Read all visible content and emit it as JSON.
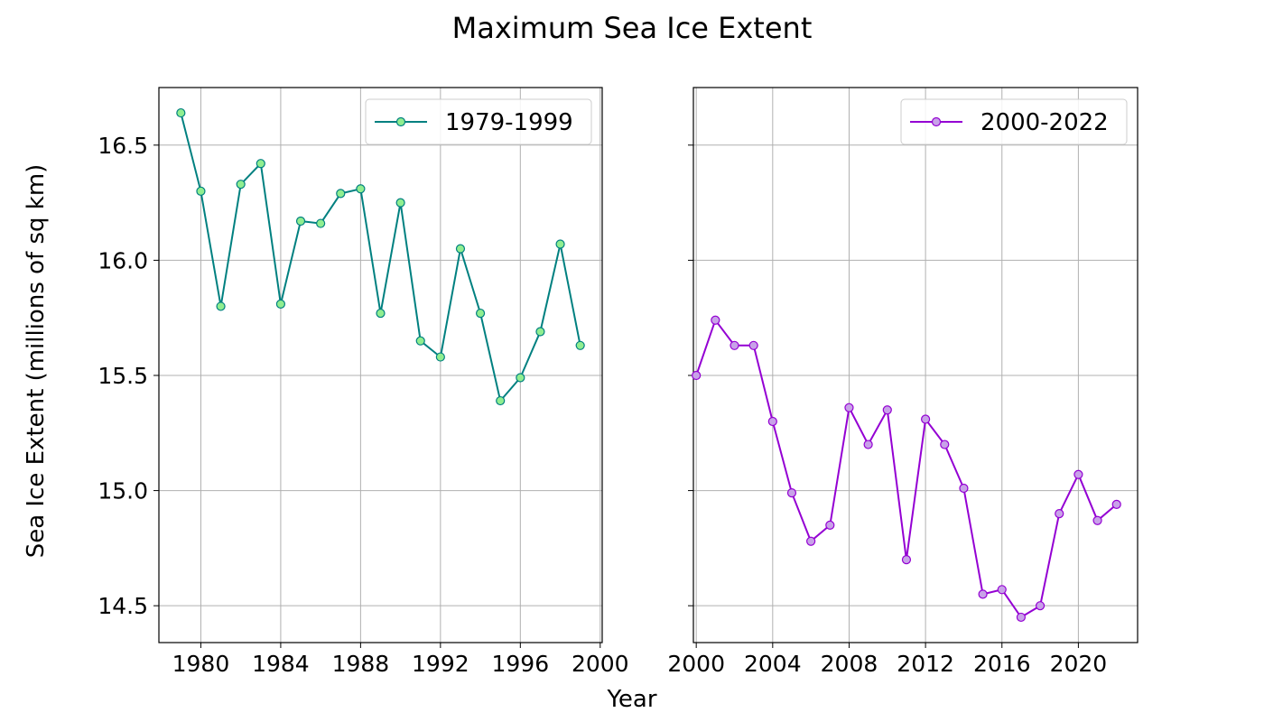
{
  "figure": {
    "title": "Maximum Sea Ice Extent",
    "xlabel": "Year",
    "ylabel": "Sea Ice Extent (millions of sq km)"
  },
  "chart_data": [
    {
      "type": "line",
      "series": [
        {
          "name": "1979-1999",
          "color": "#008080",
          "marker_fill": "#90ee90",
          "x": [
            1979,
            1980,
            1981,
            1982,
            1983,
            1984,
            1985,
            1986,
            1987,
            1988,
            1989,
            1990,
            1991,
            1992,
            1993,
            1994,
            1995,
            1996,
            1997,
            1998,
            1999
          ],
          "values": [
            16.64,
            16.3,
            15.8,
            16.33,
            16.42,
            15.81,
            16.17,
            16.16,
            16.29,
            16.31,
            15.77,
            16.25,
            15.65,
            15.58,
            16.05,
            15.77,
            15.39,
            15.49,
            15.69,
            16.07,
            15.63
          ]
        }
      ],
      "xlim": [
        1977.9,
        2000.1
      ],
      "ylim": [
        14.34,
        16.75
      ],
      "xticks": [
        1980,
        1984,
        1988,
        1992,
        1996,
        2000
      ],
      "yticks": [
        14.5,
        15.0,
        15.5,
        16.0,
        16.5
      ],
      "ytick_labels": [
        "14.5",
        "15.0",
        "15.5",
        "16.0",
        "16.5"
      ],
      "grid": true,
      "legend": "top-right"
    },
    {
      "type": "line",
      "series": [
        {
          "name": "2000-2022",
          "color": "#9400d3",
          "marker_fill": "#c8a2e8",
          "x": [
            2000,
            2001,
            2002,
            2003,
            2004,
            2005,
            2006,
            2007,
            2008,
            2009,
            2010,
            2011,
            2012,
            2013,
            2014,
            2015,
            2016,
            2017,
            2018,
            2019,
            2020,
            2021,
            2022
          ],
          "values": [
            15.5,
            15.74,
            15.63,
            15.63,
            15.3,
            14.99,
            14.78,
            14.85,
            15.36,
            15.2,
            15.35,
            14.7,
            15.31,
            15.2,
            15.01,
            14.55,
            14.57,
            14.45,
            14.5,
            14.9,
            15.07,
            14.87,
            14.94
          ]
        }
      ],
      "xlim": [
        1999.85,
        2023.1
      ],
      "ylim": [
        14.34,
        16.75
      ],
      "xticks": [
        2000,
        2004,
        2008,
        2012,
        2016,
        2020
      ],
      "grid": true,
      "legend": "top-right"
    }
  ]
}
